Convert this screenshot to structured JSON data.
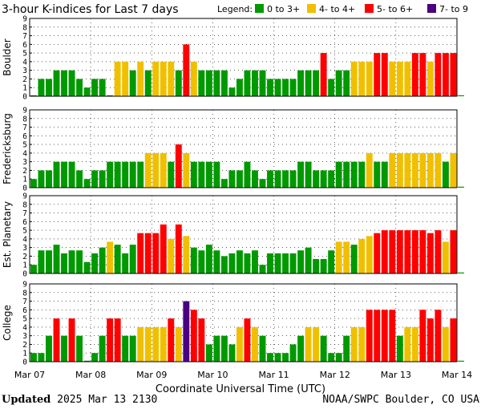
{
  "title": "3-hour K-indices for Last 7 days",
  "legend": {
    "label": "Legend:",
    "items": [
      {
        "label": "0 to 3+",
        "color": "#009900"
      },
      {
        "label": "4- to 4+",
        "color": "#f0c000"
      },
      {
        "label": "5- to 6+",
        "color": "#ff0000"
      },
      {
        "label": "7- to 9",
        "color": "#4b0082"
      }
    ]
  },
  "footer": {
    "updated_label": "Updated",
    "updated_value": "2025 Mar 13 2130",
    "credit": "NOAA/SWPC Boulder, CO USA"
  },
  "chart_data": {
    "type": "bar",
    "x_title": "Coordinate Universal Time (UTC)",
    "x_tick_labels": [
      "Mar 07",
      "Mar 08",
      "Mar 09",
      "Mar 10",
      "Mar 11",
      "Mar 12",
      "Mar 13",
      "Mar 14"
    ],
    "y_ticks": [
      0,
      1,
      2,
      3,
      4,
      5,
      6,
      7,
      8,
      9
    ],
    "ylim": [
      0,
      9
    ],
    "bins_per_day": 8,
    "thresholds": {
      "yellow_from": 3.67,
      "red_from": 4.67,
      "purple_from": 6.67
    },
    "series": [
      {
        "name": "Boulder",
        "values": [
          0,
          2,
          2,
          3,
          3,
          3,
          2,
          1,
          2,
          2,
          0,
          4,
          4,
          3,
          4,
          3,
          4,
          4,
          4,
          3,
          6,
          4,
          3,
          3,
          3,
          3,
          1,
          2,
          3,
          3,
          3,
          2,
          2,
          2,
          2,
          3,
          3,
          3,
          5,
          2,
          3,
          3,
          4,
          4,
          4,
          5,
          5,
          4,
          4,
          4,
          5,
          5,
          4,
          5,
          5,
          5,
          0
        ]
      },
      {
        "name": "Fredericksburg",
        "values": [
          1,
          2,
          2,
          3,
          3,
          3,
          2,
          1,
          2,
          2,
          3,
          3,
          3,
          3,
          3,
          4,
          4,
          4,
          3,
          5,
          4,
          3,
          3,
          3,
          3,
          1,
          2,
          2,
          3,
          2,
          1,
          2,
          2,
          2,
          2,
          3,
          3,
          2,
          2,
          2,
          3,
          3,
          3,
          3,
          4,
          3,
          3,
          4,
          4,
          4,
          4,
          4,
          4,
          4,
          3,
          4,
          0
        ]
      },
      {
        "name": "Est. Planetary",
        "values": [
          1,
          2.67,
          2.67,
          3.33,
          2.33,
          2.67,
          2.67,
          1.33,
          2.33,
          3,
          3.67,
          3.33,
          2.33,
          3.33,
          4.67,
          4.67,
          4.67,
          5.67,
          4,
          5.67,
          4.33,
          3,
          2.67,
          3.33,
          2.67,
          2,
          2.33,
          2.67,
          2.33,
          2.67,
          1,
          2.33,
          2.33,
          2.33,
          2.33,
          2.67,
          3,
          1.67,
          1.67,
          2.67,
          3.67,
          3.67,
          3.33,
          4,
          4.33,
          4.67,
          5,
          5,
          5,
          5,
          5,
          5,
          4.67,
          5,
          3.67,
          5,
          0
        ]
      },
      {
        "name": "College",
        "values": [
          1,
          1,
          3,
          5,
          3,
          5,
          3,
          0,
          1,
          3,
          5,
          5,
          3,
          3,
          4,
          4,
          4,
          4,
          5,
          4,
          7,
          6,
          5,
          2,
          3,
          3,
          2,
          4,
          5,
          4,
          3,
          1,
          1,
          1,
          2,
          3,
          4,
          4,
          3,
          1,
          1,
          3,
          4,
          4,
          6,
          6,
          6,
          6,
          3,
          4,
          4,
          6,
          5,
          6,
          4,
          5,
          0
        ]
      }
    ]
  }
}
